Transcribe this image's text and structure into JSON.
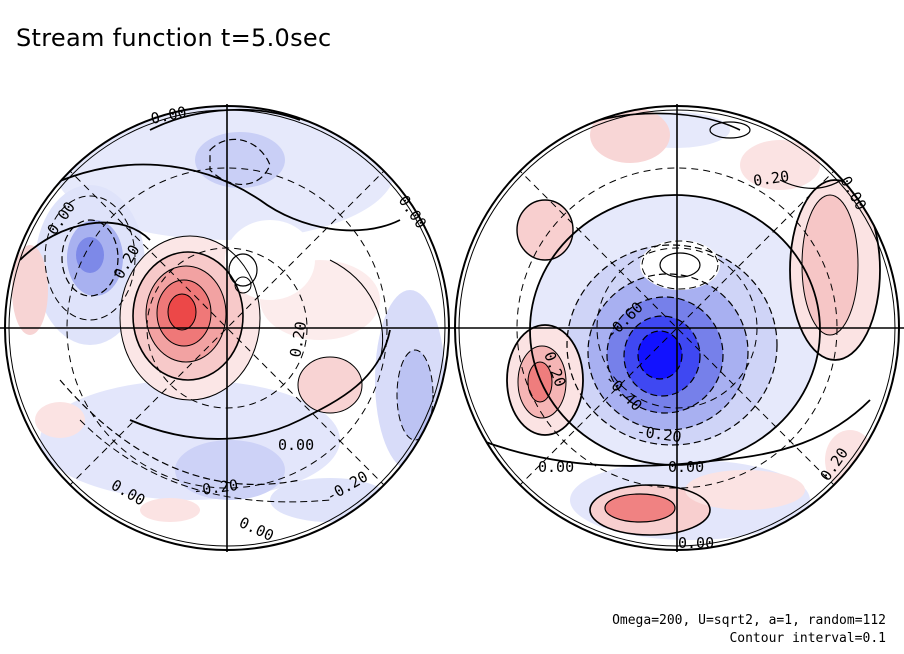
{
  "title": "Stream function t=5.0sec",
  "footer": {
    "params": "Omega=200, U=sqrt2, a=1, random=112",
    "contour_interval": "Contour interval=0.1"
  },
  "colors": {
    "positive_strong": "#f03030",
    "positive_weak": "#fbe3e3",
    "negative_strong": "#1010ff",
    "negative_weak": "#e3e6fb",
    "contour": "#000000",
    "background": "#ffffff"
  },
  "hemispheres": [
    {
      "id": "left",
      "contour_labels": [
        "0.00",
        "0.00",
        "0.20",
        "0.20",
        "0.00",
        "0.00",
        "-0.20",
        "0.00",
        "-0.20",
        "0.00"
      ]
    },
    {
      "id": "right",
      "contour_labels": [
        "0.20",
        "0.00",
        "-0.60",
        "0.20",
        "-0.40",
        "-0.20",
        "0.00",
        "0.00",
        "0.20",
        "0.00"
      ]
    }
  ]
}
